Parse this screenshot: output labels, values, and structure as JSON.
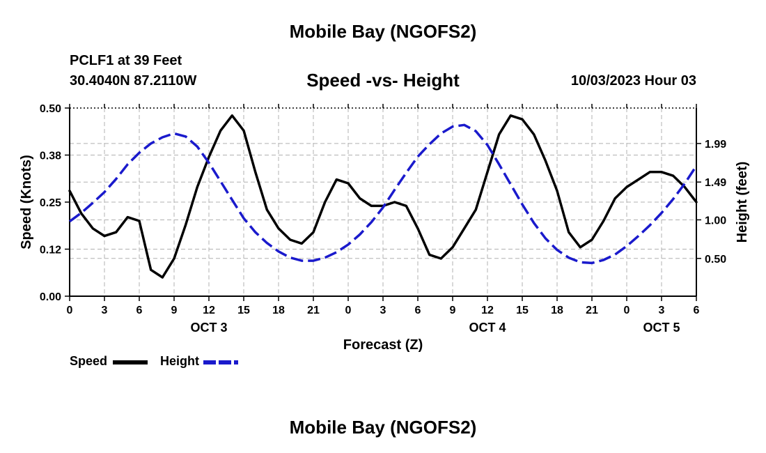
{
  "header": {
    "title": "Mobile Bay (NGOFS2)",
    "station": "PCLF1 at 39 Feet",
    "coords": "30.4040N  87.2110W",
    "subtitle": "Speed -vs- Height",
    "datetime": "10/03/2023 Hour 03"
  },
  "footer": {
    "title": "Mobile Bay (NGOFS2)"
  },
  "legend": {
    "speed_label": "Speed",
    "height_label": "Height"
  },
  "colors": {
    "speed": "#000000",
    "height": "#1a1acc",
    "grid": "#b0b0b0"
  },
  "chart_data": {
    "type": "line",
    "title": "Speed -vs- Height",
    "xlabel": "Forecast (Z)",
    "ylabel_left": "Speed (Knots)",
    "ylabel_right": "Height (feet)",
    "x_range_hours": [
      0,
      54
    ],
    "x_tick_labels": [
      "0",
      "3",
      "6",
      "9",
      "12",
      "15",
      "18",
      "21",
      "0",
      "3",
      "6",
      "9",
      "12",
      "15",
      "18",
      "21",
      "0",
      "3",
      "6"
    ],
    "date_labels": [
      {
        "label": "OCT 3",
        "hour": 12
      },
      {
        "label": "OCT 4",
        "hour": 36
      },
      {
        "label": "OCT 5",
        "hour": 51
      }
    ],
    "ylim_left": [
      0,
      0.5
    ],
    "y_left_tick_labels": [
      "0.00",
      "0.12",
      "0.25",
      "0.38",
      "0.50"
    ],
    "y_left_tick_values": [
      0,
      0.125,
      0.25,
      0.375,
      0.5
    ],
    "ylim_right": [
      0.01,
      2.45
    ],
    "y_right_tick_labels": [
      "0.50",
      "1.00",
      "1.49",
      "1.99"
    ],
    "y_right_tick_values": [
      0.5,
      1.0,
      1.49,
      1.99
    ],
    "grid": true,
    "legend_position": "bottom-left",
    "series": [
      {
        "name": "Speed",
        "axis": "left",
        "style": "solid",
        "x": [
          0,
          1,
          2,
          3,
          4,
          5,
          6,
          7,
          8,
          9,
          10,
          11,
          12,
          13,
          14,
          15,
          16,
          17,
          18,
          19,
          20,
          21,
          22,
          23,
          24,
          25,
          26,
          27,
          28,
          29,
          30,
          31,
          32,
          33,
          34,
          35,
          36,
          37,
          38,
          39,
          40,
          41,
          42,
          43,
          44,
          45,
          46,
          47,
          48,
          49,
          50,
          51,
          52,
          53,
          54
        ],
        "values": [
          0.28,
          0.22,
          0.18,
          0.16,
          0.17,
          0.21,
          0.2,
          0.07,
          0.05,
          0.1,
          0.19,
          0.29,
          0.37,
          0.44,
          0.48,
          0.44,
          0.33,
          0.23,
          0.18,
          0.15,
          0.14,
          0.17,
          0.25,
          0.31,
          0.3,
          0.26,
          0.24,
          0.24,
          0.25,
          0.24,
          0.18,
          0.11,
          0.1,
          0.13,
          0.18,
          0.23,
          0.33,
          0.43,
          0.48,
          0.47,
          0.43,
          0.36,
          0.28,
          0.17,
          0.13,
          0.15,
          0.2,
          0.26,
          0.29,
          0.31,
          0.33,
          0.33,
          0.32,
          0.29,
          0.25
        ]
      },
      {
        "name": "Height",
        "axis": "right",
        "style": "dashed",
        "x": [
          0,
          1,
          2,
          3,
          4,
          5,
          6,
          7,
          8,
          9,
          10,
          11,
          12,
          13,
          14,
          15,
          16,
          17,
          18,
          19,
          20,
          21,
          22,
          23,
          24,
          25,
          26,
          27,
          28,
          29,
          30,
          31,
          32,
          33,
          34,
          35,
          36,
          37,
          38,
          39,
          40,
          41,
          42,
          43,
          44,
          45,
          46,
          47,
          48,
          49,
          50,
          51,
          52,
          53,
          54
        ],
        "values": [
          0.98,
          1.09,
          1.22,
          1.36,
          1.53,
          1.72,
          1.87,
          1.99,
          2.07,
          2.12,
          2.08,
          1.95,
          1.74,
          1.5,
          1.26,
          1.02,
          0.84,
          0.7,
          0.59,
          0.51,
          0.47,
          0.47,
          0.51,
          0.58,
          0.68,
          0.81,
          0.97,
          1.16,
          1.39,
          1.61,
          1.82,
          1.98,
          2.12,
          2.21,
          2.23,
          2.15,
          1.97,
          1.72,
          1.46,
          1.2,
          0.96,
          0.76,
          0.61,
          0.51,
          0.45,
          0.44,
          0.48,
          0.55,
          0.66,
          0.79,
          0.93,
          1.09,
          1.27,
          1.47,
          1.7
        ]
      }
    ]
  }
}
